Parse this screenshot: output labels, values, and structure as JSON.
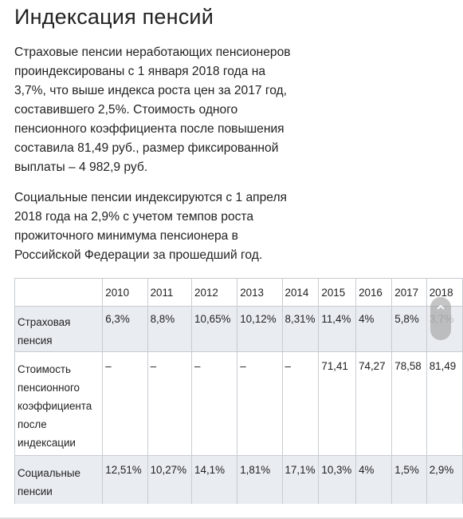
{
  "title": "Индексация пенсий",
  "paragraph1": [
    "Страховые пенсии неработающих пенсионеров",
    "проиндексированы с 1 января 2018 года на",
    "3,7%, что выше индекса роста цен за 2017 год,",
    "составившего 2,5%. Стоимость одного",
    "пенсионного коэффициента после повышения",
    "составила 81,49 руб., размер фиксированной",
    "выплаты – 4 982,9 руб."
  ],
  "paragraph2": [
    "Социальные пенсии индексируются с 1 апреля",
    "2018 года на 2,9% с учетом темпов роста",
    "прожиточного минимума пенсионера в",
    "Российской Федерации за прошедший год."
  ],
  "table": {
    "years": [
      "2010",
      "2011",
      "2012",
      "2013",
      "2014",
      "2015",
      "2016",
      "2017",
      "2018"
    ],
    "rows": [
      {
        "label_lines": [
          "Страховая",
          "пенсия"
        ],
        "values": [
          "6,3%",
          "8,8%",
          "10,65%",
          "10,12%",
          "8,31%",
          "11,4%",
          "4%",
          "5,8%",
          "3,7%"
        ]
      },
      {
        "label_lines": [
          "Стоимость",
          "пенсионного",
          "коэффициента",
          "после",
          "индексации"
        ],
        "values": [
          "–",
          "–",
          "–",
          "–",
          "–",
          "71,41",
          "74,27",
          "78,58",
          "81,49"
        ]
      },
      {
        "label_lines": [
          "Социальные",
          "пенсии"
        ],
        "values": [
          "12,51%",
          "10,27%",
          "14,1%",
          "1,81%",
          "17,1%",
          "10,3%",
          "4%",
          "1,5%",
          "2,9%"
        ]
      }
    ]
  },
  "scroll_icon": "chevron-up-icon"
}
